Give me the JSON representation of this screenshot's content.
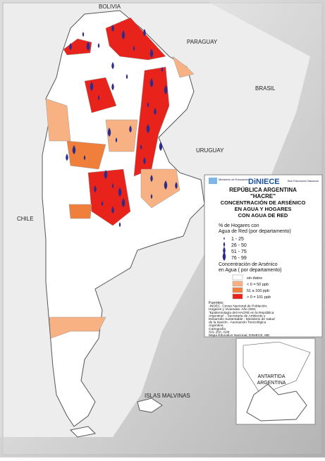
{
  "map": {
    "places": [
      "BOLIVIA",
      "PARAGUAY",
      "BRASIL",
      "URUGUAY",
      "CHILE",
      "ISLAS MALVINAS"
    ],
    "inset_label": [
      "ANTARTIDA",
      "ARGENTINA"
    ],
    "legend": {
      "logos": [
        "Ministerio de Educación",
        "DiNIECE",
        "Bue Educación Nacional"
      ],
      "title": [
        "REPÚBLICA ARGENTINA",
        "\"HACRE\"",
        "CONCENTRACIÓN DE ARSÉNICO",
        "EN AGUA  Y HOGARES",
        "CON AGUA DE RED"
      ],
      "households_title": [
        "% de Hogares con",
        "Agua de Red (por departamento)"
      ],
      "households": [
        "1 - 25",
        "26 - 50",
        "51 - 75",
        "76 - 99"
      ],
      "arsenic_title": [
        "Concentración de Arsénico",
        "en Agua ( por departamento)"
      ],
      "arsenic": [
        {
          "label": "sin datos",
          "color": "#ffffff"
        },
        {
          "label": "< 0 = 50 ppb",
          "color": "#f7b183"
        },
        {
          "label": "51 a 100 ppb",
          "color": "#f07f3c"
        },
        {
          "label": "> 0 = 101 ppb",
          "color": "#e8231c"
        }
      ],
      "sources": [
        "Fuentes:",
        "-INDEC. Censo Nacional de Población,",
        "Hogares y Viviendas. Año 2001",
        "\"Epidemiología del HACRE en la República",
        "Argentina\" - Secretaría de Ambiente y",
        "Desarrollo Sustentable - Ministerio de Salud",
        "de la Nación - Asociación Toxicológica",
        "Argentina",
        "Cartografía",
        "SIG 250, IGM.",
        "Mapa Educativo Nacional, DINIECE, ME."
      ]
    }
  }
}
